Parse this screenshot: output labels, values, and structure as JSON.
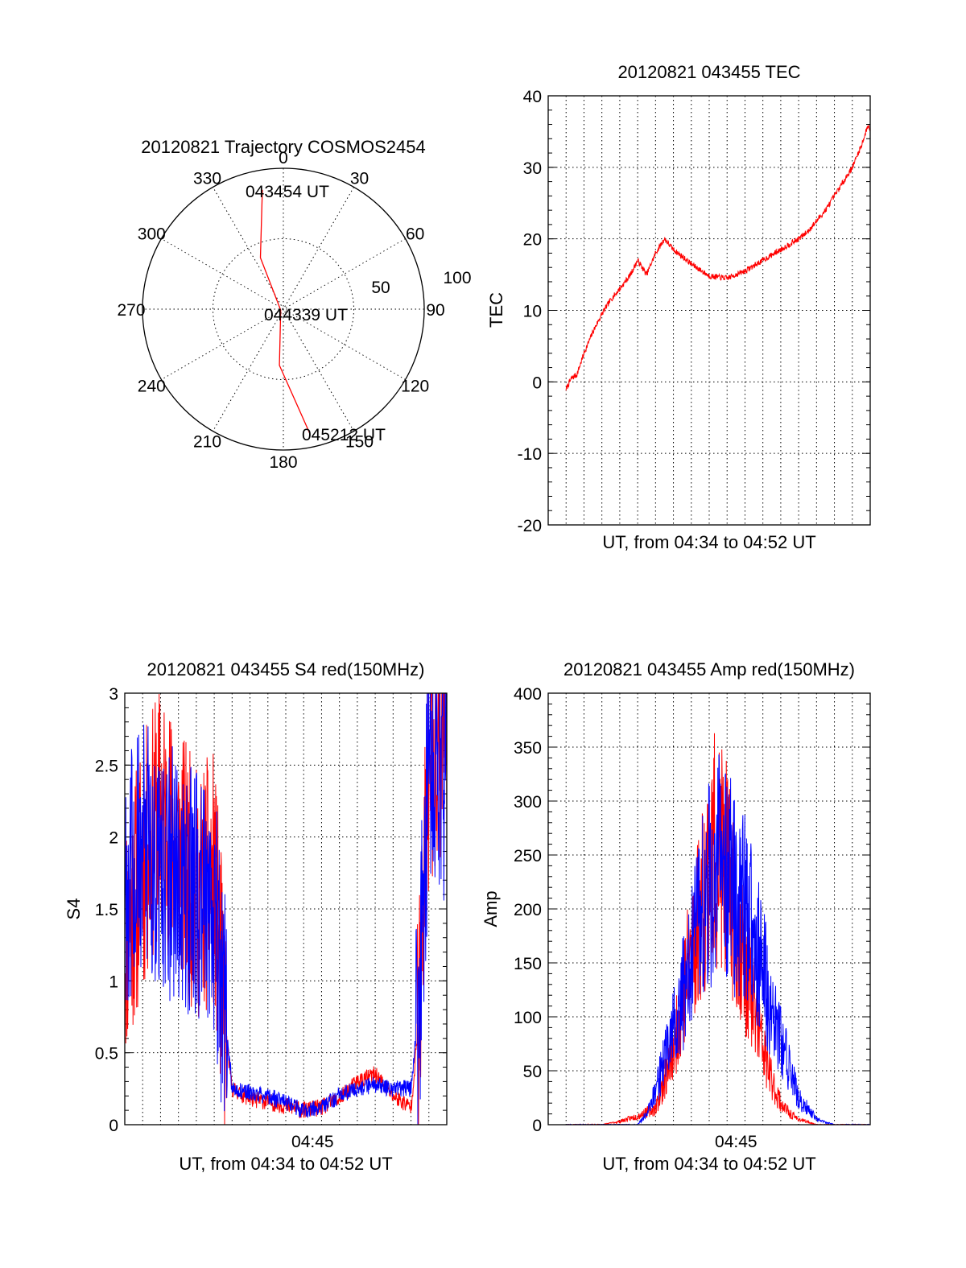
{
  "colors": {
    "red": "#ff0000",
    "blue": "#0000ff",
    "axis": "#000000",
    "background": "#ffffff"
  },
  "chart_data": [
    {
      "type": "polar",
      "title": "20120821 Trajectory COSMOS2454",
      "angle_labels": [
        "0",
        "30",
        "60",
        "90",
        "120",
        "150",
        "180",
        "210",
        "240",
        "270",
        "300",
        "330"
      ],
      "radial_labels": [
        "50",
        "100"
      ],
      "annotations": [
        "043454 UT",
        "044339 UT",
        "045212 UT"
      ],
      "trajectory": {
        "color": "#ff0000",
        "points": [
          {
            "az": 350,
            "r": 86
          },
          {
            "az": 336,
            "r": 40
          },
          {
            "az": 250,
            "r": 2
          },
          {
            "az": 184,
            "r": 40
          },
          {
            "az": 168,
            "r": 90
          }
        ]
      }
    },
    {
      "type": "line",
      "title": "20120821 043455 TEC",
      "xlabel": "UT, from 04:34 to 04:52 UT",
      "ylabel": "TEC",
      "xlim": [
        0,
        18
      ],
      "ylim": [
        -20,
        40
      ],
      "yticks": [
        "-20",
        "-10",
        "0",
        "10",
        "20",
        "30",
        "40"
      ],
      "xticks": [],
      "grid": true,
      "series": [
        {
          "color": "#ff0000",
          "x": [
            1,
            1.3,
            1.6,
            2.0,
            2.5,
            3.0,
            3.5,
            4.0,
            4.6,
            5.0,
            5.5,
            6.0,
            6.5,
            7.0,
            8.0,
            9.0,
            10.0,
            11.0,
            12.0,
            13.0,
            14.0,
            14.5,
            15.0,
            15.5,
            16.0,
            16.5,
            17.0,
            17.5,
            17.9,
            18.0
          ],
          "y": [
            -1,
            0.5,
            1,
            4,
            7,
            9.5,
            11.5,
            13,
            15,
            17,
            15,
            18,
            20,
            18.5,
            16.5,
            14.8,
            14.5,
            15.5,
            17,
            18.5,
            20,
            21,
            22.5,
            24,
            26,
            28,
            30,
            33,
            36,
            35
          ]
        }
      ]
    },
    {
      "type": "line",
      "title": "20120821 043455 S4 red(150MHz)",
      "xlabel": "UT, from 04:34 to 04:52 UT",
      "ylabel": "S4",
      "xlim": [
        0,
        18
      ],
      "ylim": [
        0,
        3
      ],
      "yticks": [
        "0",
        "0.5",
        "1",
        "1.5",
        "2",
        "2.5",
        "3"
      ],
      "xticks": [
        {
          "x": 10.5,
          "label": "04:45"
        }
      ],
      "grid": true,
      "series": [
        {
          "color": "#ff0000",
          "x": [
            0,
            1,
            2,
            3,
            4,
            5,
            5.5,
            6,
            7,
            8,
            9,
            10,
            11,
            12,
            13,
            14,
            15,
            16,
            16.5,
            17,
            18
          ],
          "y": [
            1.3,
            1.8,
            2.2,
            1.9,
            1.6,
            1.7,
            0.8,
            0.25,
            0.18,
            0.16,
            0.13,
            0.1,
            0.12,
            0.18,
            0.3,
            0.35,
            0.2,
            0.12,
            0.8,
            2.5,
            2.9
          ]
        },
        {
          "color": "#0000ff",
          "x": [
            0,
            1,
            2,
            3,
            4,
            5,
            5.5,
            6,
            7,
            8,
            9,
            10,
            11,
            12,
            13,
            14,
            15,
            16,
            16.5,
            17,
            18
          ],
          "y": [
            1.7,
            1.9,
            1.8,
            1.7,
            1.6,
            1.5,
            0.9,
            0.25,
            0.22,
            0.2,
            0.15,
            0.1,
            0.12,
            0.2,
            0.25,
            0.28,
            0.25,
            0.25,
            0.9,
            2.6,
            2.4
          ]
        }
      ]
    },
    {
      "type": "line",
      "title": "20120821 043455 Amp red(150MHz)",
      "xlabel": "UT, from 04:34 to 04:52 UT",
      "ylabel": "Amp",
      "xlim": [
        0,
        18
      ],
      "ylim": [
        0,
        400
      ],
      "yticks": [
        "0",
        "50",
        "100",
        "150",
        "200",
        "250",
        "300",
        "350",
        "400"
      ],
      "xticks": [
        {
          "x": 10.5,
          "label": "04:45"
        }
      ],
      "grid": true,
      "series": [
        {
          "color": "#ff0000",
          "x": [
            1,
            3,
            4,
            5,
            6,
            6.5,
            7,
            7.5,
            8,
            8.5,
            9,
            9.5,
            10,
            10.5,
            11,
            11.5,
            12,
            12.5,
            13,
            13.5,
            14,
            15,
            16,
            18
          ],
          "y": [
            0,
            0,
            3,
            8,
            15,
            40,
            70,
            120,
            160,
            200,
            240,
            260,
            230,
            190,
            150,
            110,
            70,
            40,
            20,
            10,
            5,
            0,
            0,
            0
          ]
        },
        {
          "color": "#0000ff",
          "x": [
            1,
            3,
            4,
            5,
            5.5,
            6,
            6.5,
            7,
            7.5,
            8,
            8.5,
            9,
            9.5,
            10,
            10.5,
            11,
            11.5,
            12,
            12.5,
            13,
            13.5,
            14,
            15,
            16,
            18
          ],
          "y": [
            0,
            0,
            0,
            0,
            10,
            30,
            60,
            90,
            120,
            150,
            190,
            220,
            240,
            230,
            210,
            200,
            180,
            140,
            110,
            80,
            50,
            25,
            5,
            0,
            0
          ]
        }
      ]
    }
  ]
}
